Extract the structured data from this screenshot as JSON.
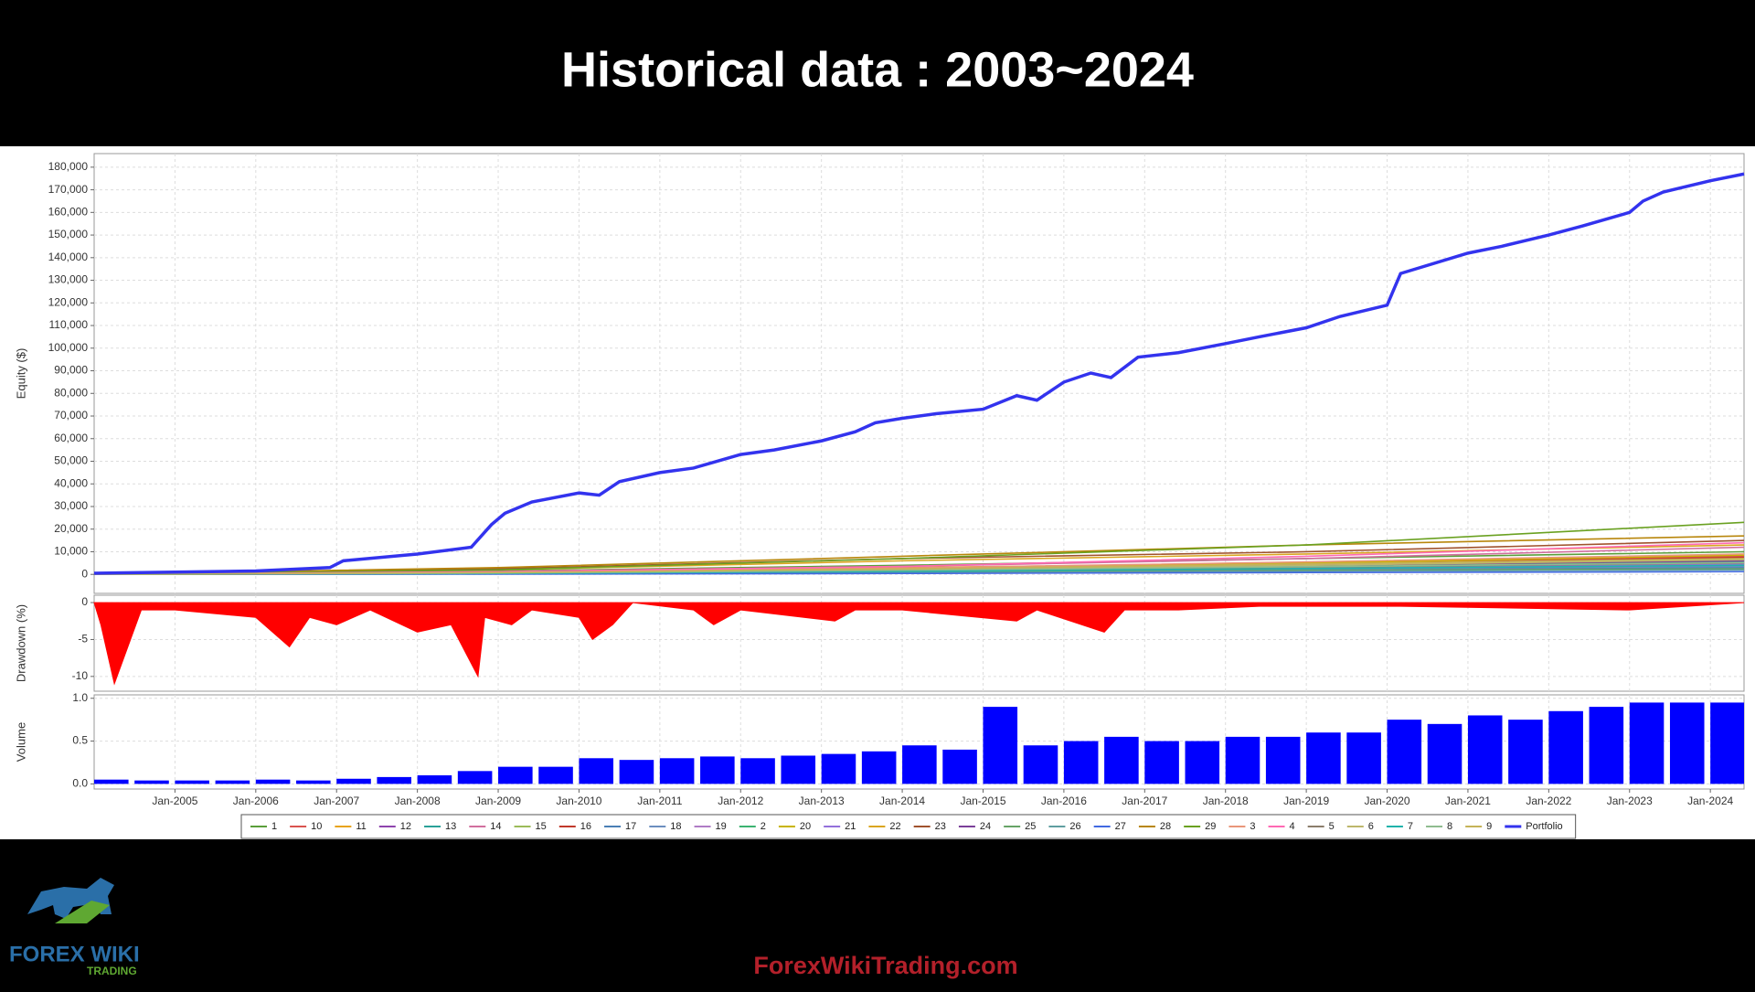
{
  "header": {
    "title": "Historical data : 2003~2024"
  },
  "logo": {
    "brand": "FOREX WIKI",
    "tagline": "TRADING"
  },
  "footer": {
    "website": "ForexWikiTrading.com"
  },
  "chart_data": [
    {
      "type": "line",
      "y_label": "Equity ($)",
      "grid": true,
      "xlim": [
        "2004-01",
        "2024-06"
      ],
      "ylim": [
        -8400,
        186000
      ],
      "yticks": [
        0,
        {
          "value": 10000,
          "label": "10,000"
        },
        {
          "value": 20000,
          "label": "20,000"
        },
        {
          "value": 30000,
          "label": "30,000"
        },
        {
          "value": 40000,
          "label": "40,000"
        },
        {
          "value": 50000,
          "label": "50,000"
        },
        {
          "value": 60000,
          "label": "60,000"
        },
        {
          "value": 70000,
          "label": "70,000"
        },
        {
          "value": 80000,
          "label": "80,000"
        },
        {
          "value": 90000,
          "label": "90,000"
        },
        {
          "value": 100000,
          "label": "100,000"
        },
        {
          "value": 110000,
          "label": "110,000"
        },
        {
          "value": 120000,
          "label": "120,000"
        },
        {
          "value": 130000,
          "label": "130,000"
        },
        {
          "value": 140000,
          "label": "140,000"
        },
        {
          "value": 150000,
          "label": "150,000"
        },
        {
          "value": 160000,
          "label": "160,000"
        },
        {
          "value": 170000,
          "label": "170,000"
        },
        {
          "value": 180000,
          "label": "180,000"
        }
      ],
      "series": [
        {
          "name": "1",
          "color": "#5a9e3a",
          "x": [
            "2004-01",
            "2009-01",
            "2014-01",
            "2019-01",
            "2024-06"
          ],
          "values": [
            0,
            1500,
            4000,
            7000,
            10000
          ]
        },
        {
          "name": "10",
          "color": "#d9534f",
          "x": [
            "2004-01",
            "2009-01",
            "2014-01",
            "2019-01",
            "2024-06"
          ],
          "values": [
            0,
            800,
            2500,
            5000,
            8000
          ]
        },
        {
          "name": "11",
          "color": "#e8a317",
          "x": [
            "2004-01",
            "2009-01",
            "2014-01",
            "2019-01",
            "2024-06"
          ],
          "values": [
            0,
            1000,
            3000,
            5000,
            7000
          ]
        },
        {
          "name": "12",
          "color": "#8e44ad",
          "x": [
            "2004-01",
            "2009-01",
            "2014-01",
            "2019-01",
            "2024-06"
          ],
          "values": [
            0,
            500,
            1500,
            3000,
            5000
          ]
        },
        {
          "name": "13",
          "color": "#2aa198",
          "x": [
            "2004-01",
            "2009-01",
            "2014-01",
            "2019-01",
            "2024-06"
          ],
          "values": [
            0,
            600,
            1800,
            3500,
            5500
          ]
        },
        {
          "name": "14",
          "color": "#d16f9e",
          "x": [
            "2004-01",
            "2009-01",
            "2014-01",
            "2019-01",
            "2024-06"
          ],
          "values": [
            0,
            1200,
            3500,
            7000,
            12000
          ]
        },
        {
          "name": "15",
          "color": "#9bbb59",
          "x": [
            "2004-01",
            "2009-01",
            "2014-01",
            "2019-01",
            "2024-06"
          ],
          "values": [
            0,
            400,
            1200,
            2500,
            4000
          ]
        },
        {
          "name": "16",
          "color": "#c0392b",
          "x": [
            "2004-01",
            "2009-01",
            "2014-01",
            "2019-01",
            "2024-06"
          ],
          "values": [
            0,
            700,
            2000,
            4500,
            7500
          ]
        },
        {
          "name": "17",
          "color": "#4a7fb5",
          "x": [
            "2004-01",
            "2009-01",
            "2014-01",
            "2019-01",
            "2024-06"
          ],
          "values": [
            0,
            300,
            1000,
            2000,
            3000
          ]
        },
        {
          "name": "18",
          "color": "#6c8ebf",
          "x": [
            "2004-01",
            "2009-01",
            "2014-01",
            "2019-01",
            "2024-06"
          ],
          "values": [
            0,
            500,
            1500,
            2500,
            3500
          ]
        },
        {
          "name": "19",
          "color": "#b07cc6",
          "x": [
            "2004-01",
            "2009-01",
            "2014-01",
            "2019-01",
            "2024-06"
          ],
          "values": [
            0,
            900,
            2500,
            4500,
            6500
          ]
        },
        {
          "name": "2",
          "color": "#3cb371",
          "x": [
            "2004-01",
            "2009-01",
            "2014-01",
            "2019-01",
            "2024-06"
          ],
          "values": [
            0,
            600,
            2000,
            3800,
            6000
          ]
        },
        {
          "name": "20",
          "color": "#c8b400",
          "x": [
            "2004-01",
            "2009-01",
            "2014-01",
            "2019-01",
            "2024-06"
          ],
          "values": [
            0,
            1000,
            2800,
            5000,
            8500
          ]
        },
        {
          "name": "21",
          "color": "#9370db",
          "x": [
            "2004-01",
            "2009-01",
            "2014-01",
            "2019-01",
            "2024-06"
          ],
          "values": [
            0,
            400,
            1500,
            3000,
            4500
          ]
        },
        {
          "name": "22",
          "color": "#daa520",
          "x": [
            "2004-01",
            "2009-01",
            "2014-01",
            "2019-01",
            "2024-06"
          ],
          "values": [
            0,
            2000,
            6000,
            9000,
            13000
          ]
        },
        {
          "name": "23",
          "color": "#a0522d",
          "x": [
            "2004-01",
            "2009-01",
            "2014-01",
            "2019-01",
            "2024-06"
          ],
          "values": [
            0,
            2500,
            7000,
            10000,
            15000
          ]
        },
        {
          "name": "24",
          "color": "#7b3f99",
          "x": [
            "2004-01",
            "2009-01",
            "2014-01",
            "2019-01",
            "2024-06"
          ],
          "values": [
            0,
            800,
            2200,
            4000,
            6000
          ]
        },
        {
          "name": "25",
          "color": "#66a366",
          "x": [
            "2004-01",
            "2009-01",
            "2014-01",
            "2019-01",
            "2024-06"
          ],
          "values": [
            0,
            300,
            900,
            1800,
            2500
          ]
        },
        {
          "name": "26",
          "color": "#5f9ea0",
          "x": [
            "2004-01",
            "2009-01",
            "2014-01",
            "2019-01",
            "2024-06"
          ],
          "values": [
            0,
            200,
            700,
            1400,
            2000
          ]
        },
        {
          "name": "27",
          "color": "#4169e1",
          "x": [
            "2004-01",
            "2009-01",
            "2014-01",
            "2019-01",
            "2024-06"
          ],
          "values": [
            0,
            100,
            400,
            800,
            1200
          ]
        },
        {
          "name": "28",
          "color": "#b8860b",
          "x": [
            "2004-01",
            "2009-01",
            "2014-01",
            "2019-01",
            "2024-06"
          ],
          "values": [
            0,
            3000,
            8000,
            13000,
            17000
          ]
        },
        {
          "name": "29",
          "color": "#6aa121",
          "x": [
            "2004-01",
            "2009-01",
            "2014-01",
            "2019-01",
            "2024-06"
          ],
          "values": [
            0,
            2000,
            7000,
            13000,
            23000
          ]
        },
        {
          "name": "3",
          "color": "#e9967a",
          "x": [
            "2004-01",
            "2009-01",
            "2014-01",
            "2019-01",
            "2024-06"
          ],
          "values": [
            0,
            900,
            2800,
            5500,
            9000
          ]
        },
        {
          "name": "4",
          "color": "#ff69b4",
          "x": [
            "2004-01",
            "2009-01",
            "2014-01",
            "2019-01",
            "2024-06"
          ],
          "values": [
            0,
            1200,
            3500,
            8000,
            14000
          ]
        },
        {
          "name": "5",
          "color": "#8b7d6b",
          "x": [
            "2004-01",
            "2009-01",
            "2014-01",
            "2019-01",
            "2024-06"
          ],
          "values": [
            0,
            500,
            1700,
            3200,
            5000
          ]
        },
        {
          "name": "6",
          "color": "#bdb76b",
          "x": [
            "2004-01",
            "2009-01",
            "2014-01",
            "2019-01",
            "2024-06"
          ],
          "values": [
            0,
            700,
            2000,
            4000,
            6500
          ]
        },
        {
          "name": "7",
          "color": "#20b2aa",
          "x": [
            "2004-01",
            "2009-01",
            "2014-01",
            "2019-01",
            "2024-06"
          ],
          "values": [
            0,
            400,
            1300,
            2600,
            4000
          ]
        },
        {
          "name": "8",
          "color": "#8fbc8f",
          "x": [
            "2004-01",
            "2009-01",
            "2014-01",
            "2019-01",
            "2024-06"
          ],
          "values": [
            0,
            600,
            1800,
            3400,
            5200
          ]
        },
        {
          "name": "9",
          "color": "#c5b358",
          "x": [
            "2004-01",
            "2009-01",
            "2014-01",
            "2019-01",
            "2024-06"
          ],
          "values": [
            0,
            800,
            2400,
            4600,
            7000
          ]
        },
        {
          "name": "Portfolio",
          "color": "#3333ee",
          "x": [
            "2004-01",
            "2005-01",
            "2006-01",
            "2006-12",
            "2007-02",
            "2008-01",
            "2008-09",
            "2008-12",
            "2009-02",
            "2009-06",
            "2010-01",
            "2010-04",
            "2010-07",
            "2011-01",
            "2011-06",
            "2012-01",
            "2012-06",
            "2013-01",
            "2013-06",
            "2013-09",
            "2014-01",
            "2014-06",
            "2015-01",
            "2015-06",
            "2015-09",
            "2016-01",
            "2016-05",
            "2016-08",
            "2016-12",
            "2017-06",
            "2018-01",
            "2018-06",
            "2019-01",
            "2019-06",
            "2020-01",
            "2020-03",
            "2021-01",
            "2021-06",
            "2022-01",
            "2022-06",
            "2023-01",
            "2023-03",
            "2023-06",
            "2024-01",
            "2024-06"
          ],
          "values": [
            500,
            1000,
            1500,
            3000,
            6000,
            9000,
            12000,
            22000,
            27000,
            32000,
            36000,
            35000,
            41000,
            45000,
            47000,
            53000,
            55000,
            59000,
            63000,
            67000,
            69000,
            71000,
            73000,
            79000,
            77000,
            85000,
            89000,
            87000,
            96000,
            98000,
            102000,
            105000,
            109000,
            114000,
            119000,
            133000,
            142000,
            145000,
            150000,
            154000,
            160000,
            165000,
            169000,
            174000,
            177000
          ]
        }
      ]
    },
    {
      "type": "area",
      "y_label": "Drawdown (%)",
      "grid": true,
      "color": "#ff0000",
      "xlim": [
        "2004-01",
        "2024-06"
      ],
      "ylim": [
        -12,
        1
      ],
      "yticks": [
        0,
        -5,
        -10
      ],
      "x": [
        "2004-01",
        "2004-02",
        "2004-04",
        "2004-06",
        "2004-08",
        "2005-01",
        "2006-01",
        "2006-06",
        "2006-09",
        "2007-01",
        "2007-06",
        "2008-01",
        "2008-06",
        "2008-10",
        "2008-11",
        "2009-03",
        "2009-06",
        "2010-01",
        "2010-03",
        "2010-06",
        "2010-09",
        "2011-06",
        "2011-09",
        "2012-01",
        "2013-03",
        "2013-06",
        "2014-01",
        "2015-06",
        "2015-09",
        "2016-07",
        "2016-10",
        "2017-06",
        "2018-06",
        "2020-03",
        "2023-01",
        "2024-06"
      ],
      "values": [
        0,
        -3,
        -11,
        -6,
        -1,
        -1,
        -2,
        -6,
        -2,
        -3,
        -1,
        -4,
        -3,
        -10,
        -2,
        -3,
        -1,
        -2,
        -5,
        -3,
        0,
        -1,
        -3,
        -1,
        -2.5,
        -1,
        -1,
        -2.5,
        -1,
        -4,
        -1,
        -1,
        -0.5,
        -0.5,
        -1,
        0
      ]
    },
    {
      "type": "bar",
      "y_label": "Volume",
      "grid": true,
      "color": "#0000ff",
      "xlim": [
        "2004-01",
        "2024-06"
      ],
      "ylim": [
        -0.06,
        1.04
      ],
      "yticks": [
        {
          "value": 0,
          "label": "0.0"
        },
        0.5,
        {
          "value": 1,
          "label": "1.0"
        }
      ],
      "xticks": [
        {
          "value": "2005-01",
          "label": "Jan-2005"
        },
        {
          "value": "2006-01",
          "label": "Jan-2006"
        },
        {
          "value": "2007-01",
          "label": "Jan-2007"
        },
        {
          "value": "2008-01",
          "label": "Jan-2008"
        },
        {
          "value": "2009-01",
          "label": "Jan-2009"
        },
        {
          "value": "2010-01",
          "label": "Jan-2010"
        },
        {
          "value": "2011-01",
          "label": "Jan-2011"
        },
        {
          "value": "2012-01",
          "label": "Jan-2012"
        },
        {
          "value": "2013-01",
          "label": "Jan-2013"
        },
        {
          "value": "2014-01",
          "label": "Jan-2014"
        },
        {
          "value": "2015-01",
          "label": "Jan-2015"
        },
        {
          "value": "2016-01",
          "label": "Jan-2016"
        },
        {
          "value": "2017-01",
          "label": "Jan-2017"
        },
        {
          "value": "2018-01",
          "label": "Jan-2018"
        },
        {
          "value": "2019-01",
          "label": "Jan-2019"
        },
        {
          "value": "2020-01",
          "label": "Jan-2020"
        },
        {
          "value": "2021-01",
          "label": "Jan-2021"
        },
        {
          "value": "2022-01",
          "label": "Jan-2022"
        },
        {
          "value": "2023-01",
          "label": "Jan-2023"
        },
        {
          "value": "2024-01",
          "label": "Jan-2024"
        }
      ],
      "x": [
        "2004-01",
        "2004-07",
        "2005-01",
        "2005-07",
        "2006-01",
        "2006-07",
        "2007-01",
        "2007-07",
        "2008-01",
        "2008-07",
        "2009-01",
        "2009-07",
        "2010-01",
        "2010-07",
        "2011-01",
        "2011-07",
        "2012-01",
        "2012-07",
        "2013-01",
        "2013-07",
        "2014-01",
        "2014-07",
        "2015-01",
        "2015-07",
        "2016-01",
        "2016-07",
        "2017-01",
        "2017-07",
        "2018-01",
        "2018-07",
        "2019-01",
        "2019-07",
        "2020-01",
        "2020-07",
        "2021-01",
        "2021-07",
        "2022-01",
        "2022-07",
        "2023-01",
        "2023-07",
        "2024-01"
      ],
      "values": [
        0.05,
        0.04,
        0.04,
        0.04,
        0.05,
        0.04,
        0.06,
        0.08,
        0.1,
        0.15,
        0.2,
        0.2,
        0.3,
        0.28,
        0.3,
        0.32,
        0.3,
        0.33,
        0.35,
        0.38,
        0.45,
        0.4,
        0.9,
        0.45,
        0.5,
        0.55,
        0.5,
        0.5,
        0.55,
        0.55,
        0.6,
        0.6,
        0.75,
        0.7,
        0.8,
        0.75,
        0.85,
        0.9,
        0.95,
        0.95,
        0.95
      ]
    }
  ]
}
